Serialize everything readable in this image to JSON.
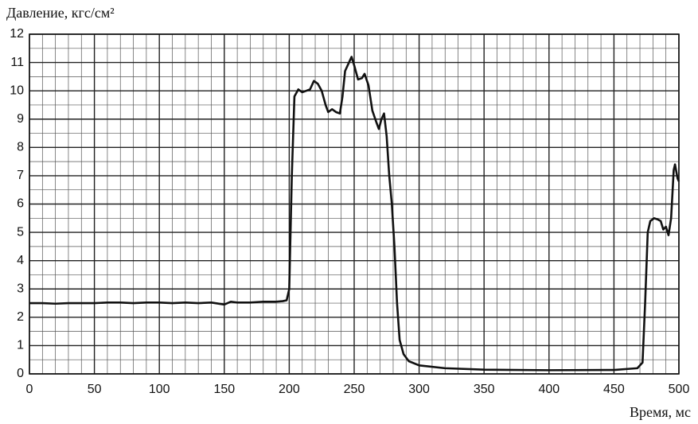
{
  "chart_data": {
    "type": "line",
    "ylabel": "Давление, кгс/см²",
    "xlabel": "Время, мс",
    "x": [
      0,
      10,
      20,
      30,
      40,
      50,
      60,
      70,
      80,
      90,
      100,
      110,
      120,
      130,
      140,
      150,
      155,
      160,
      170,
      180,
      190,
      195,
      198,
      200,
      202,
      204,
      207,
      210,
      213,
      216,
      219,
      222,
      225,
      228,
      230,
      233,
      236,
      239,
      241,
      243,
      246,
      248,
      250,
      253,
      256,
      258,
      261,
      264,
      267,
      269,
      271,
      273,
      275,
      277,
      279,
      281,
      283,
      285,
      288,
      292,
      300,
      320,
      350,
      400,
      450,
      468,
      472,
      474,
      476,
      478,
      481,
      484,
      486,
      488,
      490,
      492,
      494,
      496,
      497,
      499,
      500
    ],
    "series": [
      {
        "name": "Давление",
        "color": "#111111",
        "values": [
          2.5,
          2.5,
          2.48,
          2.5,
          2.5,
          2.5,
          2.52,
          2.52,
          2.5,
          2.52,
          2.52,
          2.5,
          2.52,
          2.5,
          2.52,
          2.45,
          2.55,
          2.52,
          2.52,
          2.55,
          2.55,
          2.57,
          2.6,
          3.0,
          7.0,
          9.8,
          10.05,
          9.95,
          10.0,
          10.05,
          10.35,
          10.25,
          10.0,
          9.5,
          9.25,
          9.35,
          9.25,
          9.2,
          9.8,
          10.7,
          11.0,
          11.2,
          10.9,
          10.4,
          10.45,
          10.6,
          10.2,
          9.3,
          8.9,
          8.65,
          9.0,
          9.2,
          8.4,
          7.0,
          6.0,
          4.5,
          2.5,
          1.2,
          0.7,
          0.45,
          0.3,
          0.2,
          0.15,
          0.13,
          0.14,
          0.2,
          0.4,
          2.5,
          5.0,
          5.4,
          5.5,
          5.45,
          5.4,
          5.1,
          5.2,
          4.9,
          5.5,
          7.2,
          7.4,
          6.9,
          6.8
        ]
      }
    ],
    "xlim": [
      0,
      500
    ],
    "xticks": [
      0,
      50,
      100,
      150,
      200,
      250,
      300,
      350,
      400,
      450,
      500
    ],
    "ylim": [
      0,
      12
    ],
    "yticks": [
      0,
      1,
      2,
      3,
      4,
      5,
      6,
      7,
      8,
      9,
      10,
      11,
      12
    ],
    "grid": true
  }
}
